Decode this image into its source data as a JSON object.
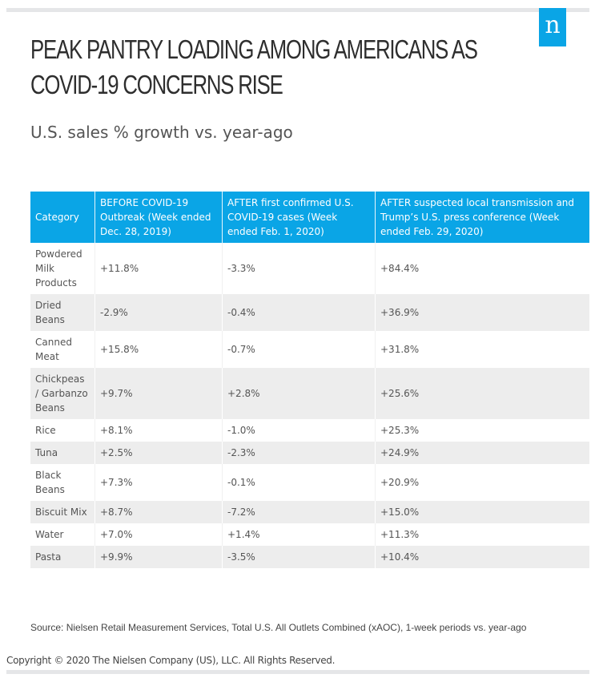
{
  "brand": {
    "logo_letter": "n",
    "color": "#0aa5e6"
  },
  "title": "PEAK PANTRY LOADING AMONG AMERICANS AS COVID-19 CONCERNS RISE",
  "subtitle": "U.S. sales % growth vs. year-ago",
  "table": {
    "headers": [
      "Category",
      "BEFORE COVID-19 Outbreak (Week ended Dec. 28, 2019)",
      "AFTER first confirmed U.S. COVID-19 cases (Week ended Feb. 1, 2020)",
      "AFTER suspected local transmission and Trump’s U.S. press conference (Week ended Feb. 29, 2020)"
    ],
    "rows": [
      [
        "Powdered Milk Products",
        "+11.8%",
        "-3.3%",
        "+84.4%"
      ],
      [
        "Dried Beans",
        "-2.9%",
        "-0.4%",
        "+36.9%"
      ],
      [
        "Canned Meat",
        "+15.8%",
        "-0.7%",
        "+31.8%"
      ],
      [
        "Chickpeas / Garbanzo Beans",
        "+9.7%",
        "+2.8%",
        "+25.6%"
      ],
      [
        "Rice",
        "+8.1%",
        "-1.0%",
        "+25.3%"
      ],
      [
        "Tuna",
        "+2.5%",
        "-2.3%",
        "+24.9%"
      ],
      [
        "Black Beans",
        "+7.3%",
        "-0.1%",
        "+20.9%"
      ],
      [
        "Biscuit Mix",
        "+8.7%",
        "-7.2%",
        "+15.0%"
      ],
      [
        "Water",
        "+7.0%",
        "+1.4%",
        "+11.3%"
      ],
      [
        "Pasta",
        "+9.9%",
        "-3.5%",
        "+10.4%"
      ]
    ]
  },
  "source": "Source: Nielsen Retail Measurement Services, Total U.S. All Outlets Combined (xAOC), 1-week periods vs. year-ago",
  "copyright": "Copyright © 2020 The Nielsen Company (US), LLC. All Rights Reserved."
}
